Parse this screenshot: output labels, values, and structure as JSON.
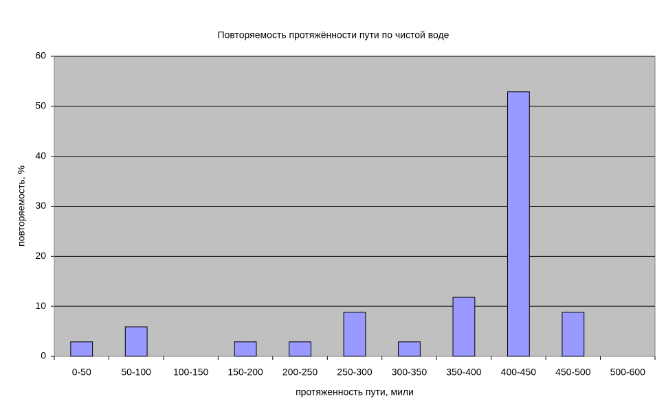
{
  "chart_data": {
    "type": "bar",
    "title": "Повторяемость протяжённости пути по чистой воде",
    "x_label": "протяженность пути, мили",
    "y_label": "повторяемость, %",
    "categories": [
      "0-50",
      "50-100",
      "100-150",
      "150-200",
      "200-250",
      "250-300",
      "300-350",
      "350-400",
      "400-450",
      "450-500",
      "500-600"
    ],
    "values": [
      2.9,
      5.9,
      0,
      2.9,
      2.9,
      8.8,
      2.9,
      11.8,
      52.9,
      8.8,
      0
    ],
    "color": "#9999ff",
    "ylim": [
      0,
      60
    ],
    "yticks": [
      0,
      10,
      20,
      30,
      40,
      50,
      60
    ],
    "grid": true
  }
}
